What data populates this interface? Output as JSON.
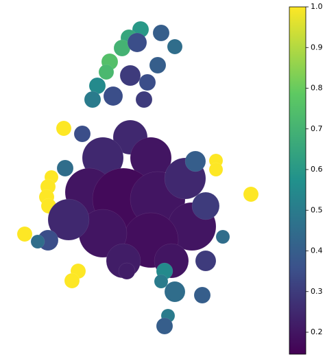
{
  "map": {
    "colorbar": {
      "clim": [
        0.146,
        1.0
      ],
      "ticks": [
        0.2,
        0.3,
        0.4,
        0.5,
        0.6,
        0.7,
        0.8,
        0.9,
        {
          "value": 1,
          "label": "1.0"
        }
      ]
    },
    "regions": {
      "values": [
        1,
        1,
        1,
        1,
        1,
        1,
        1,
        1,
        1,
        1,
        1,
        0.6,
        0.65,
        0.7,
        0.75,
        0.72,
        0.55,
        0.5,
        0.4,
        0.45,
        0.4,
        0.35,
        0.3,
        0.35,
        0.3,
        0.35,
        0.25,
        0.2,
        0.25,
        0.2,
        0.17,
        0.2,
        0.25,
        0.2,
        0.18,
        0.2,
        0.25,
        0.35,
        0.45,
        0.3,
        0.4,
        0.45,
        0.22,
        0.22,
        0.45,
        0.35,
        0.2,
        0.3,
        0.55,
        0.5,
        0.45,
        0.4,
        0.5,
        0.4
      ]
    }
  }
}
